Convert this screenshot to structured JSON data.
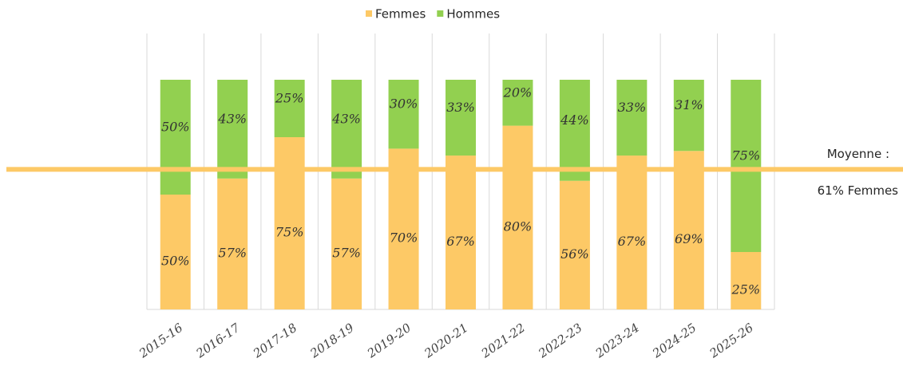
{
  "chart_data": {
    "type": "stacked_bar",
    "categories": [
      "2015-16",
      "2016-17",
      "2017-18",
      "2018-19",
      "2019-20",
      "2020-21",
      "2021-22",
      "2022-23",
      "2023-24",
      "2024-25",
      "2025-26"
    ],
    "series": [
      {
        "name": "Femmes",
        "color": "#fdc966",
        "values": [
          50,
          57,
          75,
          57,
          70,
          67,
          80,
          56,
          67,
          69,
          25
        ],
        "value_labels": [
          "50%",
          "57%",
          "75%",
          "57%",
          "70%",
          "67%",
          "80%",
          "56%",
          "67%",
          "69%",
          "25%"
        ]
      },
      {
        "name": "Hommes",
        "color": "#92d050",
        "values": [
          50,
          43,
          25,
          43,
          30,
          33,
          20,
          44,
          33,
          31,
          75
        ],
        "value_labels": [
          "50%",
          "43%",
          "25%",
          "43%",
          "30%",
          "33%",
          "20%",
          "44%",
          "33%",
          "31%",
          "75%"
        ]
      }
    ],
    "ylim": [
      0,
      100
    ],
    "average_line": {
      "value": 61,
      "color": "#fdc966",
      "label": [
        "Moyenne :",
        "61% Femmes"
      ]
    },
    "legend": "top",
    "grid": true
  }
}
